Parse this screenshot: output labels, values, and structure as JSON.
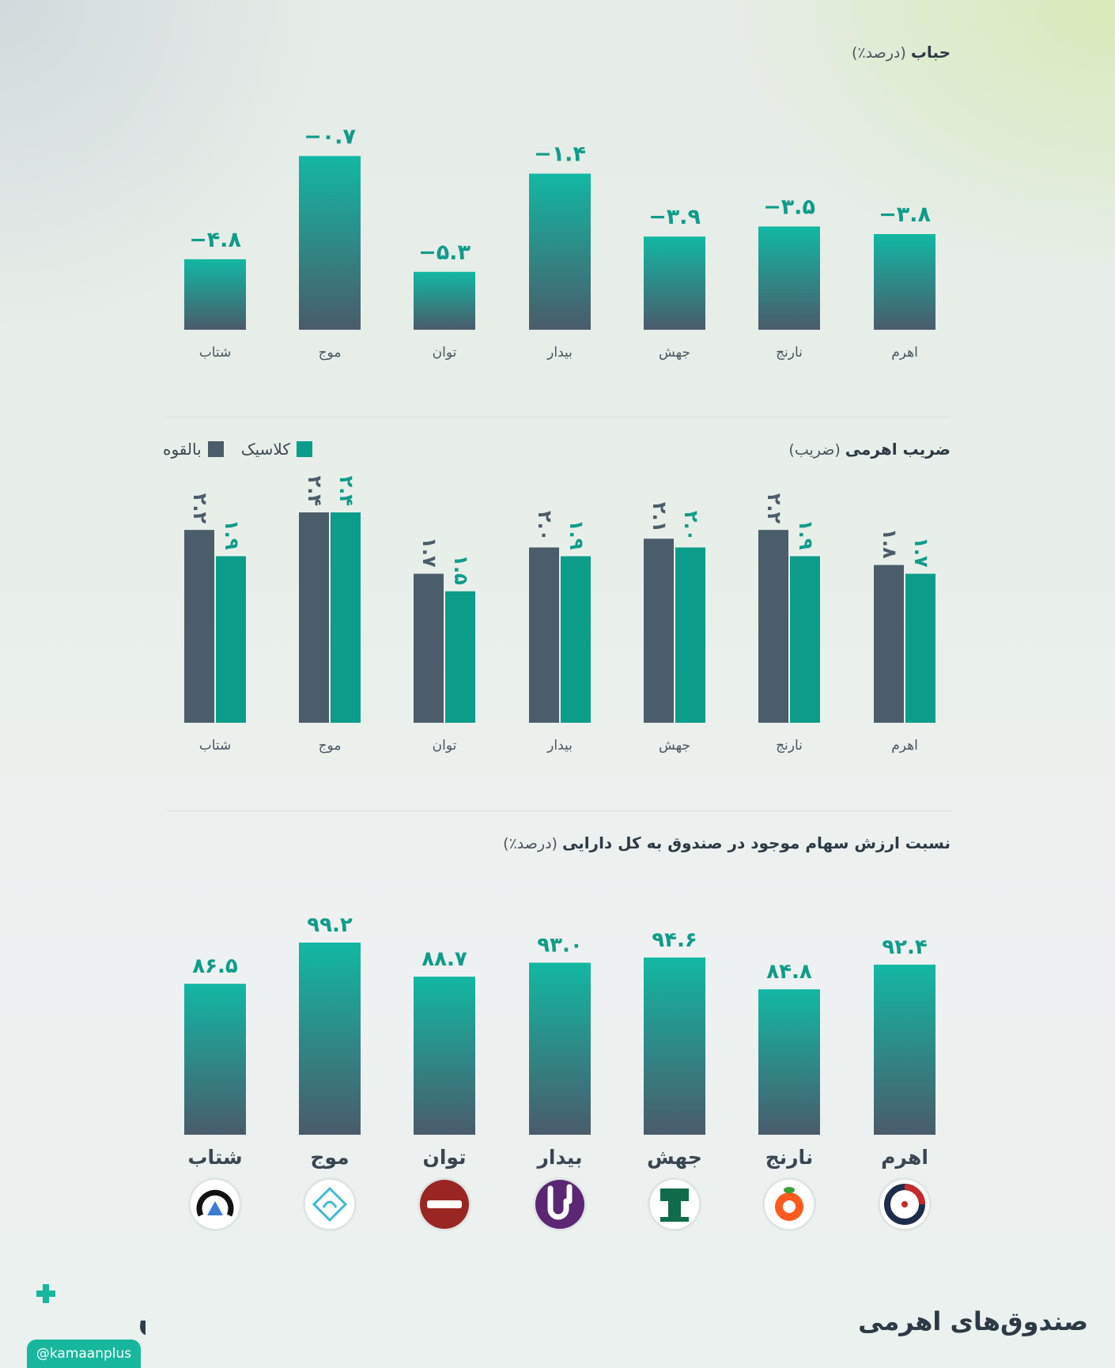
{
  "page": {
    "footer_title": "صندوق‌های اهرمی",
    "brand_name": "کمان",
    "brand_handle": "@kamaanplus"
  },
  "funds": [
    "اهرم",
    "نارنج",
    "جهش",
    "بیدار",
    "توان",
    "موج",
    "شتاب"
  ],
  "fund_logo_icons": [
    "ahrom-logo-icon",
    "narenj-logo-icon",
    "jahesh-logo-icon",
    "bidar-logo-icon",
    "tavan-logo-icon",
    "moj-logo-icon",
    "shetab-logo-icon"
  ],
  "colors": {
    "teal_top": "#12b8a3",
    "slate_bottom": "#4a5b6b",
    "potential": "#4b5c6a",
    "classic": "#0c9d8a",
    "label_teal": "#0f9c8a"
  },
  "chart_data": [
    {
      "type": "bar",
      "title": "حباب",
      "unit": "(درصد٪)",
      "categories": [
        "اهرم",
        "نارنج",
        "جهش",
        "بیدار",
        "توان",
        "موج",
        "شتاب"
      ],
      "values": [
        -3.8,
        -3.5,
        -3.9,
        -1.4,
        -5.3,
        -0.7,
        -4.8
      ],
      "value_labels": [
        "−۳.۸",
        "−۳.۵",
        "−۳.۹",
        "−۱.۴",
        "−۵.۳",
        "−۰.۷",
        "−۴.۸"
      ],
      "grid": false
    },
    {
      "type": "bar",
      "title": "ضریب اهرمی",
      "unit": "(ضریب)",
      "categories": [
        "اهرم",
        "نارنج",
        "جهش",
        "بیدار",
        "توان",
        "موج",
        "شتاب"
      ],
      "legend": "top-left",
      "series": [
        {
          "name": "بالقوه",
          "values": [
            1.8,
            2.2,
            2.1,
            2.0,
            1.7,
            2.4,
            2.2
          ],
          "value_labels": [
            "۱.۸",
            "۲.۲",
            "۲.۱",
            "۲.۰",
            "۱.۷",
            "۲.۴",
            "۲.۲"
          ]
        },
        {
          "name": "کلاسیک",
          "values": [
            1.7,
            1.9,
            2.0,
            1.9,
            1.5,
            2.4,
            1.9
          ],
          "value_labels": [
            "۱.۷",
            "۱.۹",
            "۲.۰",
            "۱.۹",
            "۱.۵",
            "۲.۴",
            "۱.۹"
          ]
        }
      ],
      "grid": false
    },
    {
      "type": "bar",
      "title": "نسبت ارزش سهام موجود در صندوق به کل دارایی",
      "unit": "(درصد٪)",
      "categories": [
        "اهرم",
        "نارنج",
        "جهش",
        "بیدار",
        "توان",
        "موج",
        "شتاب"
      ],
      "values": [
        92.4,
        84.8,
        94.6,
        93.0,
        88.7,
        99.2,
        86.5
      ],
      "value_labels": [
        "۹۲.۴",
        "۸۴.۸",
        "۹۴.۶",
        "۹۳.۰",
        "۸۸.۷",
        "۹۹.۲",
        "۸۶.۵"
      ],
      "grid": false
    }
  ]
}
